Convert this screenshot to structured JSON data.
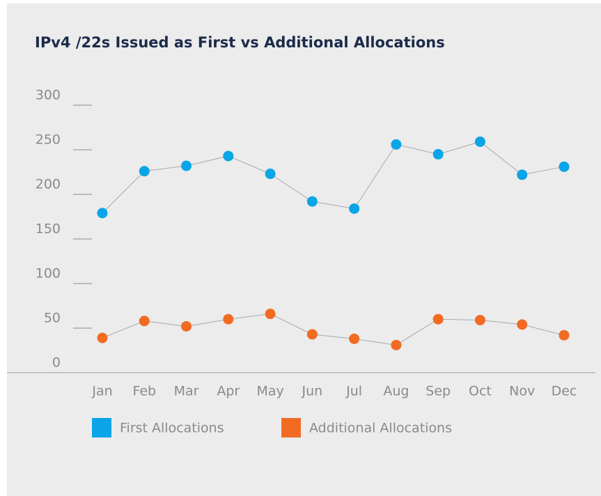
{
  "chart_data": {
    "type": "line",
    "title": "IPv4 /22s Issued as First vs Additional Allocations",
    "categories": [
      "Jan",
      "Feb",
      "Mar",
      "Apr",
      "May",
      "Jun",
      "Jul",
      "Aug",
      "Sep",
      "Oct",
      "Nov",
      "Dec"
    ],
    "series": [
      {
        "name": "First Allocations",
        "color": "#0aa5e6",
        "values": [
          179,
          226,
          232,
          243,
          223,
          192,
          184,
          256,
          245,
          259,
          222,
          231
        ]
      },
      {
        "name": "Additional Allocations",
        "color": "#f26b22",
        "values": [
          39,
          58,
          52,
          60,
          66,
          43,
          38,
          31,
          60,
          59,
          54,
          42
        ]
      }
    ],
    "ylim": [
      0,
      300
    ],
    "yticks": [
      0,
      50,
      100,
      150,
      200,
      250,
      300
    ]
  }
}
